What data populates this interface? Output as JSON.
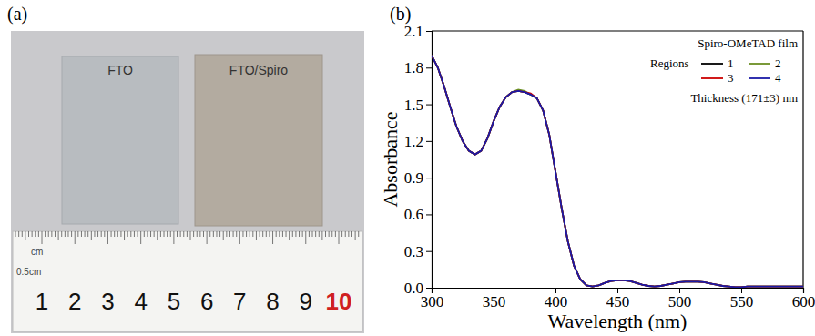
{
  "photo": {
    "panel_label": "(a)",
    "labels": [
      "FTO",
      "FTO/Spiro"
    ],
    "ruler_unit": "cm",
    "ruler_sub_unit": "0.5cm",
    "ruler_numbers": [
      1,
      2,
      3,
      4,
      5,
      6,
      7,
      8,
      9,
      10
    ]
  },
  "chart_data": {
    "type": "line",
    "panel_label": "(b)",
    "x_label": "Wavelength (nm)",
    "y_label": "Absorbance",
    "annotations": [
      "Spiro-OMeTAD film",
      "Regions",
      "Thickness (171±3) nm"
    ],
    "x": [
      300,
      305,
      310,
      315,
      320,
      325,
      330,
      335,
      340,
      345,
      350,
      355,
      360,
      365,
      370,
      375,
      380,
      385,
      390,
      395,
      400,
      405,
      410,
      415,
      420,
      425,
      430,
      435,
      440,
      445,
      450,
      455,
      460,
      465,
      470,
      475,
      480,
      485,
      490,
      495,
      500,
      505,
      510,
      515,
      520,
      525,
      530,
      535,
      540,
      545,
      550,
      555,
      560,
      565,
      570,
      575,
      580,
      585,
      590,
      595,
      600
    ],
    "series": [
      {
        "name": "1",
        "color": "#000000",
        "values": [
          1.9,
          1.8,
          1.65,
          1.48,
          1.32,
          1.2,
          1.12,
          1.09,
          1.12,
          1.22,
          1.36,
          1.48,
          1.56,
          1.6,
          1.61,
          1.6,
          1.58,
          1.55,
          1.45,
          1.25,
          0.95,
          0.65,
          0.38,
          0.18,
          0.07,
          0.02,
          0.01,
          0.02,
          0.04,
          0.055,
          0.06,
          0.06,
          0.055,
          0.04,
          0.025,
          0.015,
          0.01,
          0.015,
          0.025,
          0.035,
          0.045,
          0.05,
          0.05,
          0.05,
          0.045,
          0.035,
          0.025,
          0.015,
          0.01,
          0.005,
          0.005,
          0.01,
          0.01,
          0.01,
          0.01,
          0.01,
          0.01,
          0.01,
          0.01,
          0.01,
          0.01
        ]
      },
      {
        "name": "2",
        "color": "#6b8e23",
        "values": [
          1.9,
          1.8,
          1.65,
          1.48,
          1.32,
          1.2,
          1.12,
          1.09,
          1.12,
          1.22,
          1.36,
          1.48,
          1.56,
          1.6,
          1.62,
          1.61,
          1.58,
          1.55,
          1.45,
          1.25,
          0.95,
          0.65,
          0.38,
          0.18,
          0.07,
          0.02,
          0.01,
          0.02,
          0.04,
          0.055,
          0.06,
          0.06,
          0.055,
          0.04,
          0.025,
          0.015,
          0.01,
          0.015,
          0.025,
          0.035,
          0.045,
          0.05,
          0.05,
          0.05,
          0.045,
          0.035,
          0.025,
          0.015,
          0.01,
          0.005,
          0.005,
          0.01,
          0.01,
          0.01,
          0.01,
          0.01,
          0.01,
          0.01,
          0.01,
          0.01,
          0.01
        ]
      },
      {
        "name": "3",
        "color": "#cc0000",
        "values": [
          1.9,
          1.8,
          1.65,
          1.48,
          1.32,
          1.2,
          1.12,
          1.09,
          1.12,
          1.22,
          1.36,
          1.48,
          1.56,
          1.6,
          1.61,
          1.6,
          1.59,
          1.55,
          1.45,
          1.25,
          0.95,
          0.65,
          0.38,
          0.18,
          0.07,
          0.02,
          0.01,
          0.02,
          0.04,
          0.055,
          0.06,
          0.06,
          0.055,
          0.04,
          0.025,
          0.015,
          0.01,
          0.015,
          0.025,
          0.035,
          0.045,
          0.05,
          0.05,
          0.05,
          0.045,
          0.035,
          0.025,
          0.015,
          0.01,
          0.005,
          0.005,
          0.01,
          0.01,
          0.01,
          0.01,
          0.01,
          0.01,
          0.01,
          0.01,
          0.01,
          0.01
        ]
      },
      {
        "name": "4",
        "color": "#1a1aa6",
        "values": [
          1.9,
          1.8,
          1.65,
          1.48,
          1.32,
          1.2,
          1.12,
          1.09,
          1.12,
          1.22,
          1.36,
          1.48,
          1.56,
          1.6,
          1.61,
          1.6,
          1.58,
          1.55,
          1.45,
          1.25,
          0.95,
          0.65,
          0.38,
          0.18,
          0.07,
          0.02,
          0.01,
          0.02,
          0.04,
          0.055,
          0.06,
          0.06,
          0.055,
          0.04,
          0.025,
          0.015,
          0.01,
          0.015,
          0.025,
          0.035,
          0.045,
          0.05,
          0.05,
          0.05,
          0.045,
          0.035,
          0.025,
          0.015,
          0.01,
          0.005,
          0.005,
          0.01,
          0.01,
          0.01,
          0.01,
          0.01,
          0.01,
          0.01,
          0.01,
          0.01,
          0.01
        ]
      }
    ],
    "xlim": [
      300,
      600
    ],
    "xticks": [
      300,
      350,
      400,
      450,
      500,
      550,
      600
    ],
    "ylim": [
      0,
      2.1
    ],
    "yticks": [
      {
        "value": 0,
        "label": "0.0"
      },
      0.3,
      0.6,
      0.9,
      1.2,
      1.5,
      1.8,
      2.1
    ],
    "grid": false,
    "legend": "upper right"
  }
}
